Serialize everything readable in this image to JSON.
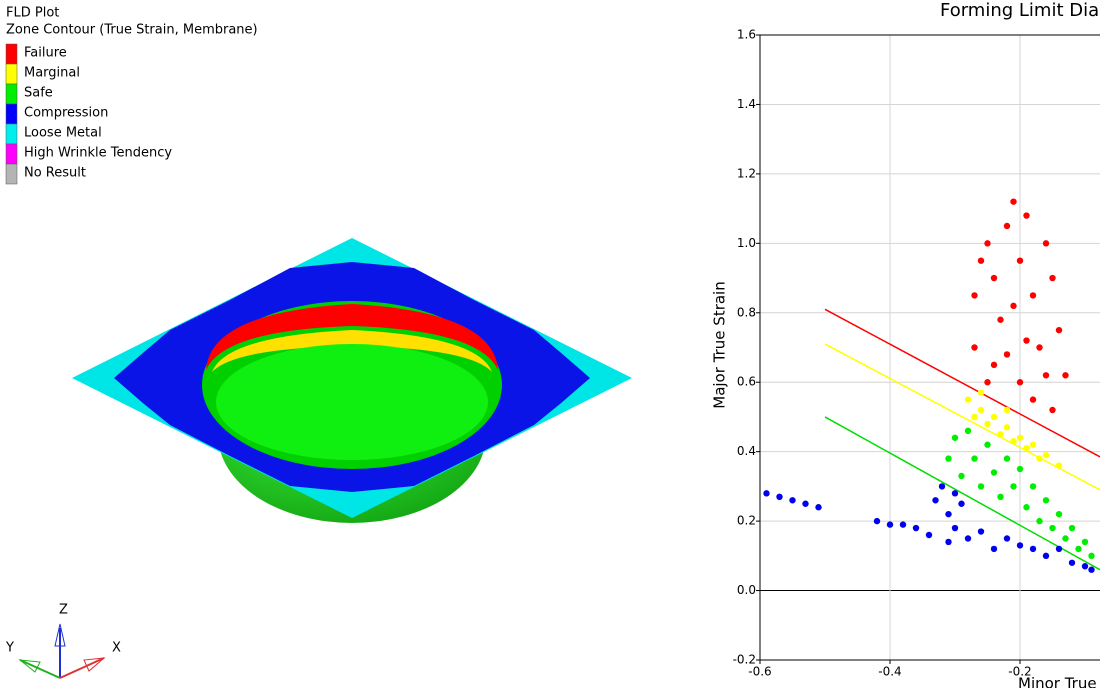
{
  "header": {
    "title": "FLD Plot",
    "subtitle": "Zone Contour (True Strain, Membrane)"
  },
  "legend": [
    {
      "label": "Failure",
      "color": "#ff0000"
    },
    {
      "label": "Marginal",
      "color": "#ffff00"
    },
    {
      "label": "Safe",
      "color": "#00ee00"
    },
    {
      "label": "Compression",
      "color": "#0000ff"
    },
    {
      "label": "Loose Metal",
      "color": "#00eeee"
    },
    {
      "label": "High Wrinkle Tendency",
      "color": "#ff00ff"
    },
    {
      "label": "No Result",
      "color": "#b4b4b4"
    }
  ],
  "triad": {
    "z": "Z",
    "y": "Y",
    "x": "X"
  },
  "chart_data": {
    "type": "scatter",
    "title": "Forming Limit Dia",
    "x_label": "Minor True",
    "y_label": "Major True Strain",
    "xlim": [
      -0.6,
      0.6
    ],
    "ylim": [
      -0.2,
      1.6
    ],
    "xticks": [
      -0.6,
      -0.4,
      -0.2
    ],
    "yticks": [
      -0.2,
      {
        "value": 0,
        "label": "0.0"
      },
      0.2,
      0.4,
      0.6,
      0.8,
      {
        "value": 1,
        "label": "1.0"
      },
      1.2,
      1.4,
      1.6
    ],
    "grid": true,
    "lines": [
      {
        "color": "#ff0000",
        "x": [
          -0.5,
          -0.077
        ],
        "y": [
          0.81,
          0.385
        ]
      },
      {
        "color": "#ffff00",
        "x": [
          -0.5,
          -0.077
        ],
        "y": [
          0.71,
          0.29
        ]
      },
      {
        "color": "#00dd00",
        "x": [
          -0.5,
          -0.077
        ],
        "y": [
          0.5,
          0.06
        ]
      }
    ],
    "series": [
      {
        "color": "#ff0000",
        "x": [
          -0.27,
          -0.26,
          -0.25,
          -0.24,
          -0.23,
          -0.22,
          -0.21,
          -0.2,
          -0.19,
          -0.18,
          -0.17,
          -0.16,
          -0.15,
          -0.14,
          -0.24,
          -0.2,
          -0.18,
          -0.27,
          -0.22,
          -0.16,
          -0.13,
          -0.25,
          -0.21,
          -0.19,
          -0.15
        ],
        "y": [
          0.85,
          0.95,
          1.0,
          0.9,
          0.78,
          1.05,
          1.12,
          0.95,
          1.08,
          0.85,
          0.7,
          1.0,
          0.9,
          0.75,
          0.65,
          0.6,
          0.55,
          0.7,
          0.68,
          0.62,
          0.62,
          0.6,
          0.82,
          0.72,
          0.52
        ]
      },
      {
        "color": "#ffff00",
        "x": [
          -0.28,
          -0.27,
          -0.26,
          -0.25,
          -0.24,
          -0.23,
          -0.22,
          -0.21,
          -0.2,
          -0.19,
          -0.18,
          -0.17,
          -0.16,
          -0.14,
          -0.26,
          -0.22
        ],
        "y": [
          0.55,
          0.5,
          0.52,
          0.48,
          0.5,
          0.45,
          0.47,
          0.43,
          0.44,
          0.41,
          0.42,
          0.38,
          0.39,
          0.36,
          0.57,
          0.52
        ]
      },
      {
        "color": "#00ee00",
        "x": [
          -0.31,
          -0.3,
          -0.29,
          -0.28,
          -0.27,
          -0.26,
          -0.25,
          -0.24,
          -0.23,
          -0.22,
          -0.21,
          -0.2,
          -0.19,
          -0.18,
          -0.17,
          -0.16,
          -0.15,
          -0.14,
          -0.13,
          -0.12,
          -0.11,
          -0.1,
          -0.09
        ],
        "y": [
          0.38,
          0.44,
          0.33,
          0.46,
          0.38,
          0.3,
          0.42,
          0.34,
          0.27,
          0.38,
          0.3,
          0.35,
          0.24,
          0.3,
          0.2,
          0.26,
          0.18,
          0.22,
          0.15,
          0.18,
          0.12,
          0.14,
          0.1
        ]
      },
      {
        "color": "#0000ee",
        "x": [
          -0.59,
          -0.57,
          -0.55,
          -0.53,
          -0.51,
          -0.42,
          -0.4,
          -0.38,
          -0.36,
          -0.34,
          -0.33,
          -0.32,
          -0.31,
          -0.3,
          -0.29,
          -0.28,
          -0.26,
          -0.24,
          -0.22,
          -0.2,
          -0.18,
          -0.16,
          -0.14,
          -0.12,
          -0.1,
          -0.09,
          -0.3,
          -0.31
        ],
        "y": [
          0.28,
          0.27,
          0.26,
          0.25,
          0.24,
          0.2,
          0.19,
          0.19,
          0.18,
          0.16,
          0.26,
          0.3,
          0.22,
          0.18,
          0.25,
          0.15,
          0.17,
          0.12,
          0.15,
          0.13,
          0.12,
          0.1,
          0.12,
          0.08,
          0.07,
          0.06,
          0.28,
          0.14
        ]
      }
    ]
  }
}
